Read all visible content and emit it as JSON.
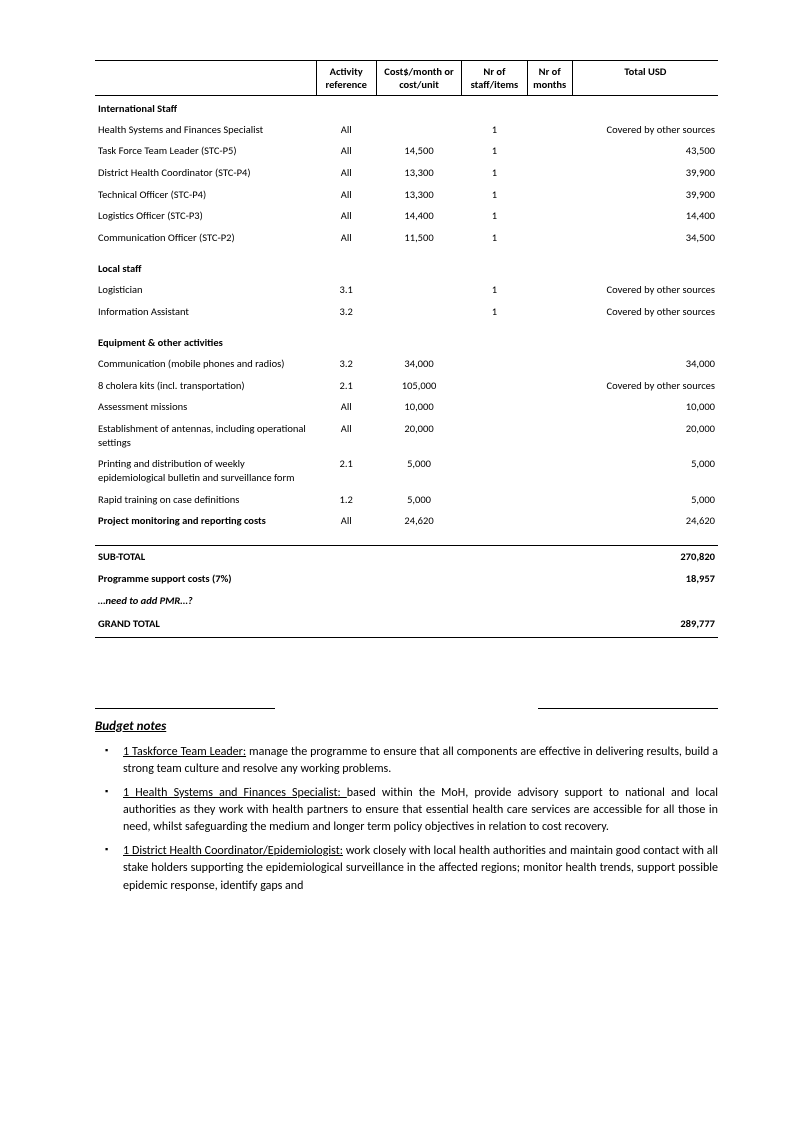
{
  "table": {
    "headers": {
      "desc": "",
      "ref": "Activity reference",
      "cost": "Cost$/month or cost/unit",
      "staff": "Nr of staff/items",
      "months": "Nr of months",
      "total": "Total USD"
    },
    "sections": [
      {
        "title": "International Staff",
        "rows": [
          {
            "desc": "Health Systems and Finances Specialist",
            "ref": "All",
            "cost": "",
            "staff": "1",
            "months": "",
            "total": "Covered by other sources"
          },
          {
            "desc": "Task Force Team Leader (STC-P5)",
            "ref": "All",
            "cost": "14,500",
            "staff": "1",
            "months": "",
            "total": "43,500"
          },
          {
            "desc": "District Health Coordinator (STC-P4)",
            "ref": "All",
            "cost": "13,300",
            "staff": "1",
            "months": "",
            "total": "39,900"
          },
          {
            "desc": "Technical Officer (STC-P4)",
            "ref": "All",
            "cost": "13,300",
            "staff": "1",
            "months": "",
            "total": "39,900"
          },
          {
            "desc": "Logistics Officer (STC-P3)",
            "ref": "All",
            "cost": "14,400",
            "staff": "1",
            "months": "",
            "total": "14,400"
          },
          {
            "desc": "Communication Officer (STC-P2)",
            "ref": "All",
            "cost": "11,500",
            "staff": "1",
            "months": "",
            "total": "34,500"
          }
        ]
      },
      {
        "title": "Local staff",
        "rows": [
          {
            "desc": "Logistician",
            "ref": "3.1",
            "cost": "",
            "staff": "1",
            "months": "",
            "total": "Covered by other sources"
          },
          {
            "desc": "Information Assistant",
            "ref": "3.2",
            "cost": "",
            "staff": "1",
            "months": "",
            "total": "Covered by other sources"
          }
        ]
      },
      {
        "title": "Equipment & other activities",
        "rows": [
          {
            "desc": "Communication (mobile phones and radios)",
            "ref": "3.2",
            "cost": "34,000",
            "staff": "",
            "months": "",
            "total": "34,000"
          },
          {
            "desc": "8 cholera kits (incl. transportation)",
            "ref": "2.1",
            "cost": "105,000",
            "staff": "",
            "months": "",
            "total": "Covered by other sources"
          },
          {
            "desc": "Assessment missions",
            "ref": "All",
            "cost": "10,000",
            "staff": "",
            "months": "",
            "total": "10,000"
          },
          {
            "desc": "Establishment of antennas, including operational settings",
            "ref": "All",
            "cost": "20,000",
            "staff": "",
            "months": "",
            "total": "20,000"
          },
          {
            "desc": "Printing and distribution of weekly epidemiological bulletin and surveillance form",
            "ref": "2.1",
            "cost": "5,000",
            "staff": "",
            "months": "",
            "total": "5,000"
          },
          {
            "desc": "Rapid training on case definitions",
            "ref": "1.2",
            "cost": "5,000",
            "staff": "",
            "months": "",
            "total": "5,000"
          },
          {
            "desc": "Project monitoring and reporting costs",
            "ref": "All",
            "cost": "24,620",
            "staff": "",
            "months": "",
            "total": "24,620",
            "bold": true
          }
        ]
      }
    ],
    "subtotal": {
      "label": "SUB-TOTAL",
      "value": "270,820"
    },
    "psc": {
      "label": "Programme support costs (7%)",
      "value": "18,957"
    },
    "pmr": {
      "label": "…need to add PMR…?",
      "value": ""
    },
    "grandtotal": {
      "label": "GRAND TOTAL",
      "value": "289,777"
    }
  },
  "notes": {
    "title": "Budget notes",
    "items": [
      {
        "lead": "1 Taskforce Team Leader:",
        "body": " manage the programme to ensure that all components are effective in delivering results, build a strong team culture and resolve any working problems."
      },
      {
        "lead": "1 Health Systems and Finances Specialist: ",
        "body": " based within the MoH, provide advisory support to national and local authorities as they work with health partners to ensure that essential health care services are accessible for all those in need, whilst safeguarding the medium and longer term  policy objectives in relation to cost recovery."
      },
      {
        "lead": "1 District Health Coordinator/Epidemiologist:",
        "body": " work closely with local health authorities and maintain good contact with all stake holders supporting the epidemiological surveillance in the affected regions; monitor health trends, support possible epidemic response, identify gaps and"
      }
    ]
  }
}
